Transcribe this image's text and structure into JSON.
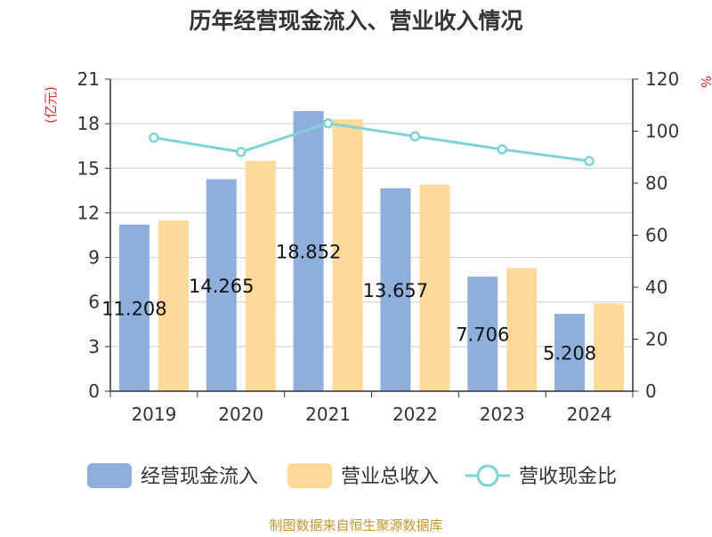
{
  "chart_data": {
    "type": "bar",
    "title": "历年经营现金流入、营业收入情况",
    "categories": [
      "2019",
      "2020",
      "2021",
      "2022",
      "2023",
      "2024"
    ],
    "left_axis": {
      "unit_label": "(亿元)",
      "ylim": [
        0,
        21
      ],
      "ticks": [
        "0",
        "3",
        "6",
        "9",
        "12",
        "15",
        "18",
        "21"
      ]
    },
    "right_axis": {
      "unit_label": "%",
      "ylim": [
        0,
        120
      ],
      "ticks": [
        "0",
        "20",
        "40",
        "60",
        "80",
        "100",
        "120"
      ]
    },
    "grid": true,
    "legend_position": "bottom",
    "series": [
      {
        "name": "经营现金流入",
        "kind": "bar",
        "axis": "left",
        "color": "#8eaedc",
        "values": [
          11.208,
          14.265,
          18.852,
          13.657,
          7.706,
          5.208
        ],
        "labels": [
          "11.208",
          "14.265",
          "18.852",
          "13.657",
          "7.706",
          "5.208"
        ]
      },
      {
        "name": "营业总收入",
        "kind": "bar",
        "axis": "left",
        "color": "#fdd99a",
        "values": [
          11.5,
          15.5,
          18.3,
          13.9,
          8.3,
          5.9
        ]
      },
      {
        "name": "营收现金比",
        "kind": "line",
        "axis": "right",
        "color": "#7fd3d4",
        "values": [
          97.5,
          92.0,
          103.0,
          98.0,
          93.0,
          88.5
        ]
      }
    ],
    "source": "制图数据来自恒生聚源数据库"
  }
}
